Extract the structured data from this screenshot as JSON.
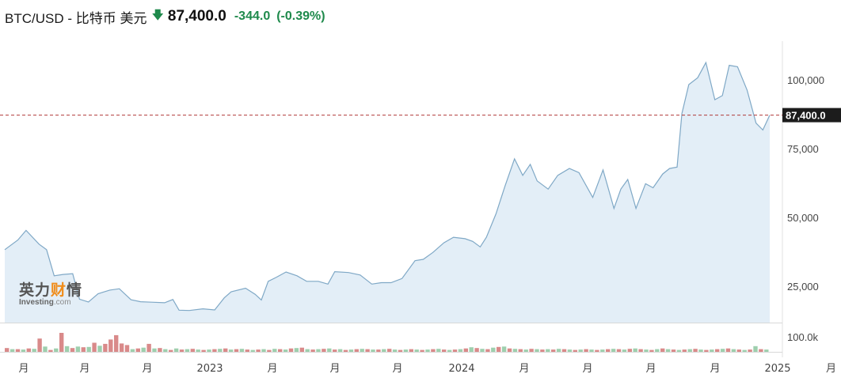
{
  "header": {
    "title": "BTC/USD - 比特币 美元",
    "price": "87,400.0",
    "change": "-344.0",
    "change_pct": "(-0.39%)",
    "direction_icon": "down-arrow-icon",
    "change_color": "#1f8a4c"
  },
  "watermark": {
    "logo_cn": "英力财情",
    "logo_cn_highlight_char": "财",
    "logo_en": "Investing",
    "logo_en_suffix": ".com"
  },
  "chart_data": {
    "type": "area",
    "x": [
      "2022-03-01",
      "2022-03-20",
      "2022-04-01",
      "2022-04-20",
      "2022-05-01",
      "2022-05-12",
      "2022-05-25",
      "2022-06-08",
      "2022-06-18",
      "2022-07-01",
      "2022-07-15",
      "2022-08-01",
      "2022-08-15",
      "2022-09-01",
      "2022-09-15",
      "2022-10-01",
      "2022-10-20",
      "2022-11-01",
      "2022-11-10",
      "2022-11-25",
      "2022-12-15",
      "2023-01-01",
      "2023-01-15",
      "2023-01-25",
      "2023-02-15",
      "2023-03-01",
      "2023-03-10",
      "2023-03-20",
      "2023-04-01",
      "2023-04-15",
      "2023-05-01",
      "2023-05-15",
      "2023-06-01",
      "2023-06-15",
      "2023-06-25",
      "2023-07-15",
      "2023-08-01",
      "2023-08-18",
      "2023-09-01",
      "2023-09-15",
      "2023-10-01",
      "2023-10-20",
      "2023-11-01",
      "2023-11-15",
      "2023-12-01",
      "2023-12-15",
      "2024-01-01",
      "2024-01-12",
      "2024-01-23",
      "2024-02-01",
      "2024-02-15",
      "2024-02-28",
      "2024-03-13",
      "2024-03-25",
      "2024-04-05",
      "2024-04-15",
      "2024-05-01",
      "2024-05-15",
      "2024-06-01",
      "2024-06-15",
      "2024-07-05",
      "2024-07-20",
      "2024-08-05",
      "2024-08-15",
      "2024-08-25",
      "2024-09-06",
      "2024-09-20",
      "2024-10-01",
      "2024-10-15",
      "2024-10-25",
      "2024-11-05",
      "2024-11-12",
      "2024-11-22",
      "2024-12-05",
      "2024-12-17",
      "2024-12-30",
      "2025-01-10",
      "2025-01-20",
      "2025-02-01",
      "2025-02-15",
      "2025-02-28",
      "2025-03-10",
      "2025-03-20"
    ],
    "series": [
      {
        "values": [
          38500,
          42000,
          45500,
          40500,
          38500,
          29000,
          29500,
          29800,
          20500,
          19500,
          22500,
          23800,
          24300,
          20300,
          19600,
          19400,
          19200,
          20400,
          16500,
          16400,
          17000,
          16600,
          21000,
          23200,
          24500,
          22300,
          20200,
          27000,
          28500,
          30400,
          29000,
          27000,
          27000,
          26000,
          30500,
          30200,
          29300,
          26000,
          26500,
          26500,
          28000,
          34500,
          35000,
          37500,
          41000,
          43000,
          42500,
          41500,
          39500,
          43000,
          51500,
          61500,
          71500,
          65500,
          69500,
          63500,
          60500,
          65500,
          68000,
          66500,
          57500,
          67500,
          53500,
          60500,
          64000,
          53500,
          62500,
          61000,
          66000,
          68000,
          68500,
          88000,
          98500,
          101000,
          106500,
          93000,
          94500,
          105500,
          105000,
          96500,
          84500,
          82000,
          87400
        ]
      }
    ],
    "ylim": [
      12000,
      112000
    ],
    "y_ticks": [
      100000,
      75000,
      50000,
      25000
    ],
    "y_tick_labels": [
      "100,000",
      "75,000",
      "50,000",
      "25,000"
    ],
    "current_value": 87400,
    "current_value_label": "87,400.0",
    "x_tick_labels": [
      "月",
      "月",
      "月",
      "2023",
      "月",
      "月",
      "月",
      "2024",
      "月",
      "月",
      "月",
      "月",
      "2025",
      "月"
    ],
    "volume": {
      "scale_label": "100.0k",
      "values": [
        20,
        14,
        14,
        12,
        18,
        16,
        70,
        28,
        10,
        18,
        100,
        30,
        20,
        28,
        24,
        26,
        48,
        32,
        42,
        65,
        88,
        44,
        36,
        14,
        18,
        22,
        42,
        18,
        20,
        14,
        10,
        18,
        12,
        14,
        16,
        12,
        10,
        12,
        14,
        16,
        18,
        12,
        14,
        16,
        12,
        10,
        12,
        14,
        10,
        16,
        14,
        12,
        18,
        20,
        22,
        14,
        12,
        14,
        16,
        18,
        12,
        14,
        10,
        12,
        14,
        16,
        14,
        12,
        12,
        14,
        16,
        12,
        10,
        12,
        14,
        12,
        10,
        12,
        14,
        16,
        12,
        10,
        12,
        14,
        18,
        24,
        20,
        16,
        14,
        22,
        26,
        28,
        18,
        16,
        14,
        12,
        16,
        14,
        12,
        14,
        12,
        16,
        14,
        12,
        10,
        12,
        14,
        12,
        10,
        12,
        14,
        16,
        14,
        12,
        16,
        18,
        14,
        12,
        10,
        14,
        18,
        14,
        12,
        10,
        12,
        14,
        16,
        12,
        10,
        12,
        14,
        16,
        18,
        14,
        12,
        10,
        12,
        30,
        14,
        12
      ],
      "colors": [
        "#d98a8a",
        "#9ecfae"
      ]
    },
    "grid": false,
    "fill_color": "#e3eef7",
    "line_color": "#7fa8c6",
    "price_line_color": "#b03a3a"
  }
}
